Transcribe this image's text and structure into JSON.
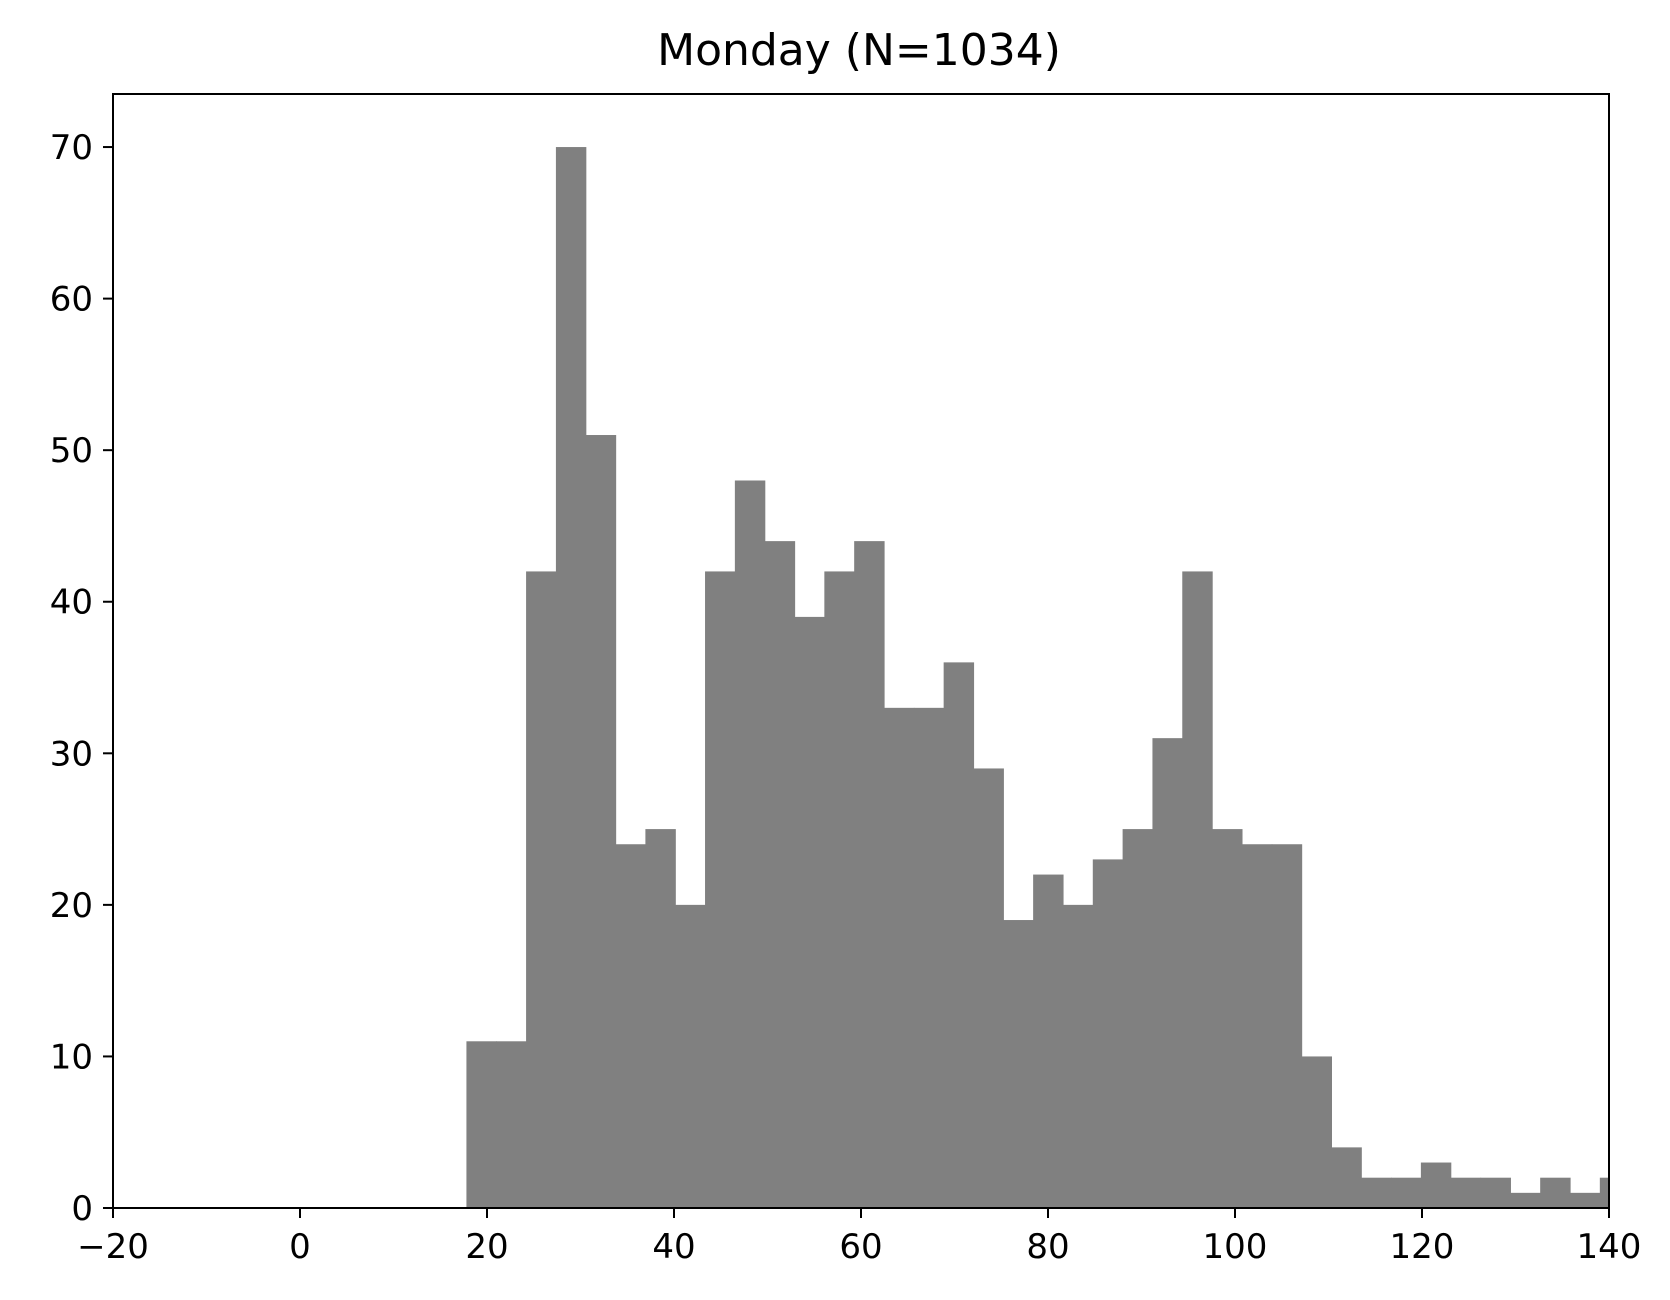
{
  "chart_data": {
    "type": "bar",
    "title": "Monday (N=1034)",
    "xlabel": "",
    "ylabel": "",
    "xlim": [
      -20,
      140
    ],
    "ylim": [
      0,
      73.5
    ],
    "x_ticks": [
      -20,
      0,
      20,
      40,
      60,
      80,
      100,
      120,
      140
    ],
    "x_tick_labels": [
      "−20",
      "0",
      "20",
      "40",
      "60",
      "80",
      "100",
      "120",
      "140"
    ],
    "y_ticks": [
      0,
      10,
      20,
      30,
      40,
      50,
      60,
      70
    ],
    "y_tick_labels": [
      "0",
      "10",
      "20",
      "30",
      "40",
      "50",
      "60",
      "70"
    ],
    "grid": false,
    "legend": "none",
    "bar_color": "#808080",
    "bin_start": 17.8,
    "bin_width": 3.19,
    "values": [
      11,
      11,
      42,
      70,
      51,
      24,
      25,
      20,
      42,
      48,
      44,
      39,
      42,
      44,
      33,
      33,
      36,
      29,
      19,
      22,
      20,
      23,
      25,
      31,
      42,
      25,
      24,
      24,
      10,
      4,
      2,
      2,
      3,
      2,
      2,
      1,
      2,
      1,
      2
    ]
  }
}
